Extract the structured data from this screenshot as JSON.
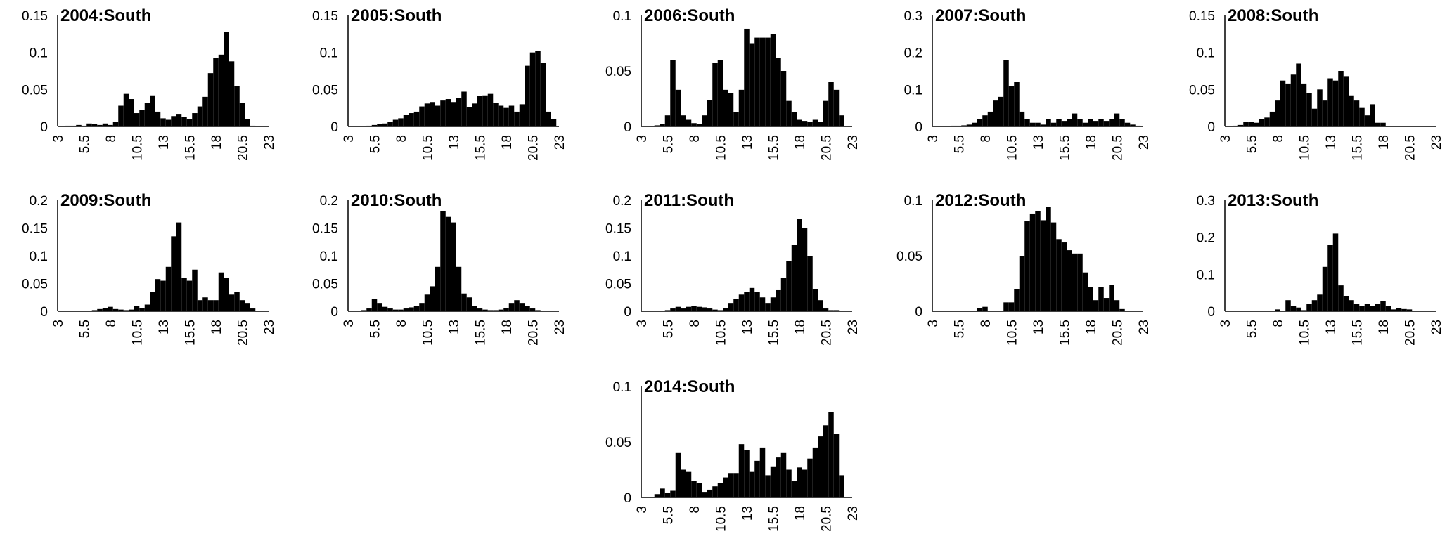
{
  "chart_data": [
    {
      "type": "bar",
      "title": "2004:South",
      "x": [
        3.5,
        4,
        4.5,
        5,
        5.5,
        6,
        6.5,
        7,
        7.5,
        8,
        8.5,
        9,
        9.5,
        10,
        10.5,
        11,
        11.5,
        12,
        12.5,
        13,
        13.5,
        14,
        14.5,
        15,
        15.5,
        16,
        16.5,
        17,
        17.5,
        18,
        18.5,
        19,
        19.5,
        20,
        20.5,
        21,
        21.5,
        22,
        22.5
      ],
      "values": [
        0.0005,
        0.001,
        0.001,
        0.002,
        0.001,
        0.004,
        0.003,
        0.002,
        0.004,
        0.002,
        0.006,
        0.028,
        0.044,
        0.037,
        0.018,
        0.022,
        0.032,
        0.042,
        0.02,
        0.011,
        0.009,
        0.014,
        0.017,
        0.013,
        0.01,
        0.018,
        0.027,
        0.04,
        0.072,
        0.093,
        0.097,
        0.128,
        0.088,
        0.055,
        0.032,
        0.01,
        0.001,
        0.0005,
        0
      ],
      "ylim": [
        0,
        0.15
      ],
      "yticks": [
        "0",
        "0.05",
        "0.1",
        "0.15"
      ],
      "xticks": [
        "3",
        "5.5",
        "8",
        "10.5",
        "13",
        "15.5",
        "18",
        "20.5",
        "23"
      ]
    },
    {
      "type": "bar",
      "title": "2005:South",
      "x": [
        3.5,
        4,
        4.5,
        5,
        5.5,
        6,
        6.5,
        7,
        7.5,
        8,
        8.5,
        9,
        9.5,
        10,
        10.5,
        11,
        11.5,
        12,
        12.5,
        13,
        13.5,
        14,
        14.5,
        15,
        15.5,
        16,
        16.5,
        17,
        17.5,
        18,
        18.5,
        19,
        19.5,
        20,
        20.5,
        21,
        21.5,
        22,
        22.5
      ],
      "values": [
        0,
        0,
        0.0005,
        0.001,
        0.002,
        0.003,
        0.004,
        0.006,
        0.009,
        0.011,
        0.016,
        0.018,
        0.02,
        0.027,
        0.031,
        0.033,
        0.028,
        0.035,
        0.037,
        0.033,
        0.038,
        0.047,
        0.026,
        0.031,
        0.041,
        0.042,
        0.044,
        0.032,
        0.028,
        0.025,
        0.028,
        0.02,
        0.03,
        0.082,
        0.1,
        0.102,
        0.086,
        0.02,
        0.01
      ],
      "ylim": [
        0,
        0.15
      ],
      "yticks": [
        "0",
        "0.05",
        "0.1",
        "0.15"
      ],
      "xticks": [
        "3",
        "5.5",
        "8",
        "10.5",
        "13",
        "15.5",
        "18",
        "20.5",
        "23"
      ]
    },
    {
      "type": "bar",
      "title": "2006:South",
      "x": [
        3.5,
        4,
        4.5,
        5,
        5.5,
        6,
        6.5,
        7,
        7.5,
        8,
        8.5,
        9,
        9.5,
        10,
        10.5,
        11,
        11.5,
        12,
        12.5,
        13,
        13.5,
        14,
        14.5,
        15,
        15.5,
        16,
        16.5,
        17,
        17.5,
        18,
        18.5,
        19,
        19.5,
        20,
        20.5,
        21,
        21.5,
        22,
        22.5
      ],
      "values": [
        0,
        0,
        0.001,
        0.002,
        0.01,
        0.06,
        0.033,
        0.01,
        0.006,
        0.003,
        0.002,
        0.01,
        0.024,
        0.057,
        0.06,
        0.033,
        0.03,
        0.013,
        0.033,
        0.088,
        0.075,
        0.08,
        0.08,
        0.08,
        0.083,
        0.062,
        0.05,
        0.023,
        0.013,
        0.006,
        0.005,
        0.004,
        0.006,
        0.004,
        0.023,
        0.04,
        0.033,
        0.01,
        0
      ],
      "ylim": [
        0,
        0.1
      ],
      "yticks": [
        "0",
        "0.05",
        "0.1"
      ],
      "xticks": [
        "3",
        "5.5",
        "8",
        "10.5",
        "13",
        "15.5",
        "18",
        "20.5",
        "23"
      ]
    },
    {
      "type": "bar",
      "title": "2007:South",
      "x": [
        3.5,
        4,
        4.5,
        5,
        5.5,
        6,
        6.5,
        7,
        7.5,
        8,
        8.5,
        9,
        9.5,
        10,
        10.5,
        11,
        11.5,
        12,
        12.5,
        13,
        13.5,
        14,
        14.5,
        15,
        15.5,
        16,
        16.5,
        17,
        17.5,
        18,
        18.5,
        19,
        19.5,
        20,
        20.5,
        21,
        21.5,
        22,
        22.5
      ],
      "values": [
        0,
        0,
        0.001,
        0.002,
        0.002,
        0.003,
        0.005,
        0.01,
        0.02,
        0.03,
        0.04,
        0.07,
        0.08,
        0.18,
        0.11,
        0.12,
        0.04,
        0.02,
        0.01,
        0.01,
        0.005,
        0.02,
        0.01,
        0.02,
        0.015,
        0.02,
        0.035,
        0.02,
        0.01,
        0.02,
        0.015,
        0.02,
        0.015,
        0.02,
        0.035,
        0.02,
        0.01,
        0.005,
        0.002
      ],
      "ylim": [
        0,
        0.3
      ],
      "yticks": [
        "0",
        "0.1",
        "0.2",
        "0.3"
      ],
      "xticks": [
        "3",
        "5.5",
        "8",
        "10.5",
        "13",
        "15.5",
        "18",
        "20.5",
        "23"
      ]
    },
    {
      "type": "bar",
      "title": "2008:South",
      "x": [
        3.5,
        4,
        4.5,
        5,
        5.5,
        6,
        6.5,
        7,
        7.5,
        8,
        8.5,
        9,
        9.5,
        10,
        10.5,
        11,
        11.5,
        12,
        12.5,
        13,
        13.5,
        14,
        14.5,
        15,
        15.5,
        16,
        16.5,
        17,
        17.5,
        18,
        18.5,
        19,
        19.5,
        20,
        20.5,
        21,
        21.5,
        22,
        22.5
      ],
      "values": [
        0,
        0.001,
        0.002,
        0.006,
        0.006,
        0.005,
        0.01,
        0.012,
        0.02,
        0.035,
        0.062,
        0.058,
        0.07,
        0.085,
        0.058,
        0.045,
        0.024,
        0.05,
        0.035,
        0.065,
        0.062,
        0.075,
        0.068,
        0.042,
        0.035,
        0.025,
        0.015,
        0.03,
        0.005,
        0.005,
        0,
        0,
        0,
        0,
        0,
        0,
        0,
        0,
        0
      ],
      "ylim": [
        0,
        0.15
      ],
      "yticks": [
        "0",
        "0.05",
        "0.1",
        "0.15"
      ],
      "xticks": [
        "3",
        "5.5",
        "8",
        "10.5",
        "13",
        "15.5",
        "18",
        "20.5",
        "23"
      ]
    },
    {
      "type": "bar",
      "title": "2009:South",
      "x": [
        3.5,
        4,
        4.5,
        5,
        5.5,
        6,
        6.5,
        7,
        7.5,
        8,
        8.5,
        9,
        9.5,
        10,
        10.5,
        11,
        11.5,
        12,
        12.5,
        13,
        13.5,
        14,
        14.5,
        15,
        15.5,
        16,
        16.5,
        17,
        17.5,
        18,
        18.5,
        19,
        19.5,
        20,
        20.5,
        21,
        21.5,
        22,
        22.5
      ],
      "values": [
        0,
        0,
        0,
        0,
        0,
        0.001,
        0.002,
        0.004,
        0.006,
        0.008,
        0.004,
        0.003,
        0.002,
        0.003,
        0.01,
        0.006,
        0.012,
        0.035,
        0.058,
        0.055,
        0.08,
        0.135,
        0.16,
        0.06,
        0.055,
        0.075,
        0.02,
        0.025,
        0.02,
        0.02,
        0.07,
        0.06,
        0.03,
        0.035,
        0.02,
        0.015,
        0.005,
        0,
        0
      ],
      "ylim": [
        0,
        0.2
      ],
      "yticks": [
        "0",
        "0.05",
        "0.1",
        "0.15",
        "0.2"
      ],
      "xticks": [
        "3",
        "5.5",
        "8",
        "10.5",
        "13",
        "15.5",
        "18",
        "20.5",
        "23"
      ]
    },
    {
      "type": "bar",
      "title": "2010:South",
      "x": [
        3.5,
        4,
        4.5,
        5,
        5.5,
        6,
        6.5,
        7,
        7.5,
        8,
        8.5,
        9,
        9.5,
        10,
        10.5,
        11,
        11.5,
        12,
        12.5,
        13,
        13.5,
        14,
        14.5,
        15,
        15.5,
        16,
        16.5,
        17,
        17.5,
        18,
        18.5,
        19,
        19.5,
        20,
        20.5,
        21,
        21.5,
        22,
        22.5
      ],
      "values": [
        0,
        0,
        0.002,
        0.005,
        0.022,
        0.015,
        0.008,
        0.005,
        0.003,
        0.003,
        0.005,
        0.007,
        0.01,
        0.015,
        0.03,
        0.045,
        0.08,
        0.18,
        0.17,
        0.16,
        0.08,
        0.032,
        0.025,
        0.01,
        0.005,
        0.003,
        0.002,
        0.002,
        0.003,
        0.006,
        0.015,
        0.02,
        0.015,
        0.01,
        0.005,
        0.002,
        0,
        0,
        0
      ],
      "ylim": [
        0,
        0.2
      ],
      "yticks": [
        "0",
        "0.05",
        "0.1",
        "0.15",
        "0.2"
      ],
      "xticks": [
        "3",
        "5.5",
        "8",
        "10.5",
        "13",
        "15.5",
        "18",
        "20.5",
        "23"
      ]
    },
    {
      "type": "bar",
      "title": "2011:South",
      "x": [
        3.5,
        4,
        4.5,
        5,
        5.5,
        6,
        6.5,
        7,
        7.5,
        8,
        8.5,
        9,
        9.5,
        10,
        10.5,
        11,
        11.5,
        12,
        12.5,
        13,
        13.5,
        14,
        14.5,
        15,
        15.5,
        16,
        16.5,
        17,
        17.5,
        18,
        18.5,
        19,
        19.5,
        20,
        20.5,
        21,
        21.5,
        22,
        22.5
      ],
      "values": [
        0,
        0,
        0,
        0,
        0.002,
        0.005,
        0.008,
        0.005,
        0.008,
        0.01,
        0.008,
        0.007,
        0.005,
        0.003,
        0.002,
        0.006,
        0.015,
        0.022,
        0.03,
        0.035,
        0.042,
        0.035,
        0.025,
        0.015,
        0.025,
        0.038,
        0.06,
        0.09,
        0.12,
        0.167,
        0.15,
        0.1,
        0.04,
        0.02,
        0.005,
        0.002,
        0.002,
        0,
        0
      ],
      "ylim": [
        0,
        0.2
      ],
      "yticks": [
        "0",
        "0.05",
        "0.1",
        "0.15",
        "0.2"
      ],
      "xticks": [
        "3",
        "5.5",
        "8",
        "10.5",
        "13",
        "15.5",
        "18",
        "20.5",
        "23"
      ]
    },
    {
      "type": "bar",
      "title": "2012:South",
      "x": [
        3.5,
        4,
        4.5,
        5,
        5.5,
        6,
        6.5,
        7,
        7.5,
        8,
        8.5,
        9,
        9.5,
        10,
        10.5,
        11,
        11.5,
        12,
        12.5,
        13,
        13.5,
        14,
        14.5,
        15,
        15.5,
        16,
        16.5,
        17,
        17.5,
        18,
        18.5,
        19,
        19.5,
        20,
        20.5,
        21,
        21.5,
        22,
        22.5
      ],
      "values": [
        0,
        0,
        0,
        0,
        0,
        0,
        0,
        0,
        0.003,
        0.004,
        0,
        0,
        0,
        0.008,
        0.008,
        0.02,
        0.05,
        0.081,
        0.088,
        0.09,
        0.082,
        0.094,
        0.08,
        0.065,
        0.062,
        0.055,
        0.052,
        0.052,
        0.035,
        0.022,
        0.01,
        0.022,
        0.012,
        0.024,
        0.01,
        0.002,
        0,
        0,
        0
      ],
      "ylim": [
        0,
        0.1
      ],
      "yticks": [
        "0",
        "0.05",
        "0.1"
      ],
      "xticks": [
        "3",
        "5.5",
        "8",
        "10.5",
        "13",
        "15.5",
        "18",
        "20.5",
        "23"
      ]
    },
    {
      "type": "bar",
      "title": "2013:South",
      "x": [
        3.5,
        4,
        4.5,
        5,
        5.5,
        6,
        6.5,
        7,
        7.5,
        8,
        8.5,
        9,
        9.5,
        10,
        10.5,
        11,
        11.5,
        12,
        12.5,
        13,
        13.5,
        14,
        14.5,
        15,
        15.5,
        16,
        16.5,
        17,
        17.5,
        18,
        18.5,
        19,
        19.5,
        20,
        20.5,
        21,
        21.5,
        22,
        22.5
      ],
      "values": [
        0,
        0,
        0,
        0,
        0,
        0,
        0,
        0,
        0,
        0.005,
        0,
        0.03,
        0.015,
        0.01,
        0.003,
        0.02,
        0.03,
        0.045,
        0.12,
        0.18,
        0.21,
        0.07,
        0.04,
        0.03,
        0.02,
        0.015,
        0.02,
        0.015,
        0.02,
        0.028,
        0.015,
        0.005,
        0.008,
        0.006,
        0.005,
        0,
        0,
        0,
        0
      ],
      "ylim": [
        0,
        0.3
      ],
      "yticks": [
        "0",
        "0.1",
        "0.2",
        "0.3"
      ],
      "xticks": [
        "3",
        "5.5",
        "8",
        "10.5",
        "13",
        "15.5",
        "18",
        "20.5",
        "23"
      ]
    },
    {
      "type": "bar",
      "title": "2014:South",
      "x": [
        3.5,
        4,
        4.5,
        5,
        5.5,
        6,
        6.5,
        7,
        7.5,
        8,
        8.5,
        9,
        9.5,
        10,
        10.5,
        11,
        11.5,
        12,
        12.5,
        13,
        13.5,
        14,
        14.5,
        15,
        15.5,
        16,
        16.5,
        17,
        17.5,
        18,
        18.5,
        19,
        19.5,
        20,
        20.5,
        21,
        21.5,
        22,
        22.5
      ],
      "values": [
        0,
        0,
        0.003,
        0.008,
        0.004,
        0.006,
        0.04,
        0.025,
        0.023,
        0.015,
        0.013,
        0.005,
        0.007,
        0.01,
        0.013,
        0.018,
        0.022,
        0.022,
        0.048,
        0.043,
        0.023,
        0.033,
        0.045,
        0.02,
        0.028,
        0.036,
        0.04,
        0.025,
        0.015,
        0.027,
        0.025,
        0.035,
        0.045,
        0.055,
        0.065,
        0.077,
        0.057,
        0.02,
        0
      ],
      "ylim": [
        0,
        0.1
      ],
      "yticks": [
        "0",
        "0.05",
        "0.1"
      ],
      "xticks": [
        "3",
        "5.5",
        "8",
        "10.5",
        "13",
        "15.5",
        "18",
        "20.5",
        "23"
      ]
    }
  ]
}
